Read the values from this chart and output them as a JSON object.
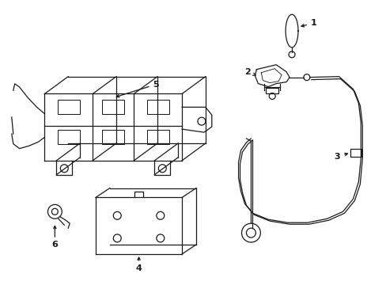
{
  "background_color": "#ffffff",
  "line_color": "#1a1a1a",
  "label_color": "#000000",
  "lw": 0.9
}
